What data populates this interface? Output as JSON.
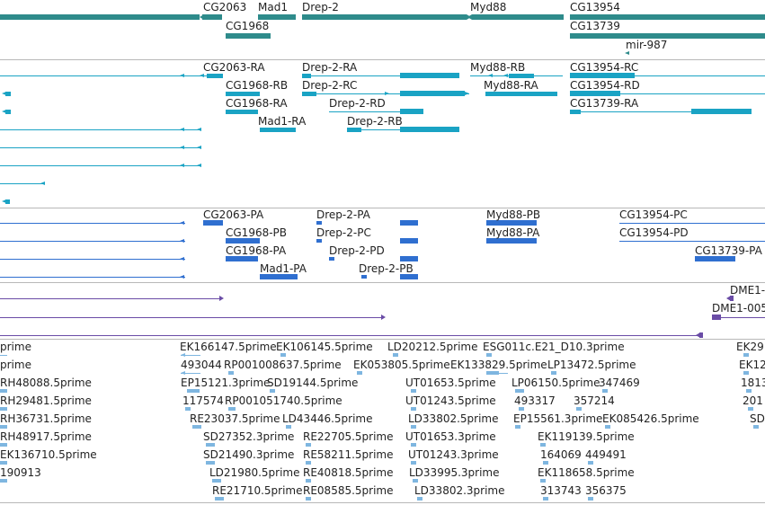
{
  "colors": {
    "gene": "#2e8b8b",
    "transcript_rx": "#1aa3c4",
    "transcript_px": "#2f6fd0",
    "dme": "#6a4ca6",
    "est": "#7eb6e0",
    "separator": "#b8b8b8",
    "text": "#222222"
  },
  "genes": {
    "labels": [
      "CG2063",
      "Mad1",
      "Drep-2",
      "Myd88",
      "CG13954",
      "CG1968",
      "CG13739",
      "mir-987"
    ]
  },
  "rna_transcripts": {
    "labels": [
      "CG2063-RA",
      "Drep-2-RA",
      "Myd88-RB",
      "CG13954-RC",
      "CG1968-RB",
      "Drep-2-RC",
      "Myd88-RA",
      "CG13954-RD",
      "CG1968-RA",
      "Drep-2-RD",
      "CG13739-RA",
      "Mad1-RA",
      "Drep-2-RB"
    ]
  },
  "protein_transcripts": {
    "labels": [
      "CG2063-PA",
      "Drep-2-PA",
      "Myd88-PB",
      "CG13954-PC",
      "CG1968-PB",
      "Drep-2-PC",
      "Myd88-PA",
      "CG13954-PD",
      "CG1968-PA",
      "Drep-2-PD",
      "CG13739-PA",
      "Mad1-PA",
      "Drep-2-PB"
    ]
  },
  "dme": {
    "labels": [
      "DME1-",
      "DME1-005"
    ]
  },
  "ests": {
    "labels": [
      "prime",
      "EK166147.5prime",
      "EK106145.5prime",
      "LD20212.5prime",
      "ESG011c.E21_D10.3prime",
      "EK29",
      "prime",
      "493044",
      "RP001008637.5prime",
      "EK053805.5prime",
      "EK133829.5prime",
      "LP13472.5prime",
      "EK12",
      "RH48088.5prime",
      "EP15121.3prime",
      "SD19144.5prime",
      "UT01653.5prime",
      "LP06150.5prime",
      "347469",
      "1813",
      "RH29481.5prime",
      "117574",
      "RP001051740.5prime",
      "UT01243.5prime",
      "493317",
      "357214",
      "201",
      "RH36731.5prime",
      "RE23037.5prime",
      "LD43446.5prime",
      "LD33802.5prime",
      "EP15561.3prime",
      "EK085426.5prime",
      "SD",
      "RH48917.5prime",
      "SD27352.3prime",
      "RE22705.5prime",
      "UT01653.3prime",
      "EK119139.5prime",
      "EK136710.5prime",
      "SD21490.3prime",
      "RE58211.5prime",
      "UT01243.3prime",
      "164069",
      "449491",
      "190913",
      "LD21980.5prime",
      "RE40818.5prime",
      "LD33995.3prime",
      "EK118658.5prime",
      "RE21710.5prime",
      "RE08585.5prime",
      "LD33802.3prime",
      "313743",
      "356375"
    ]
  }
}
